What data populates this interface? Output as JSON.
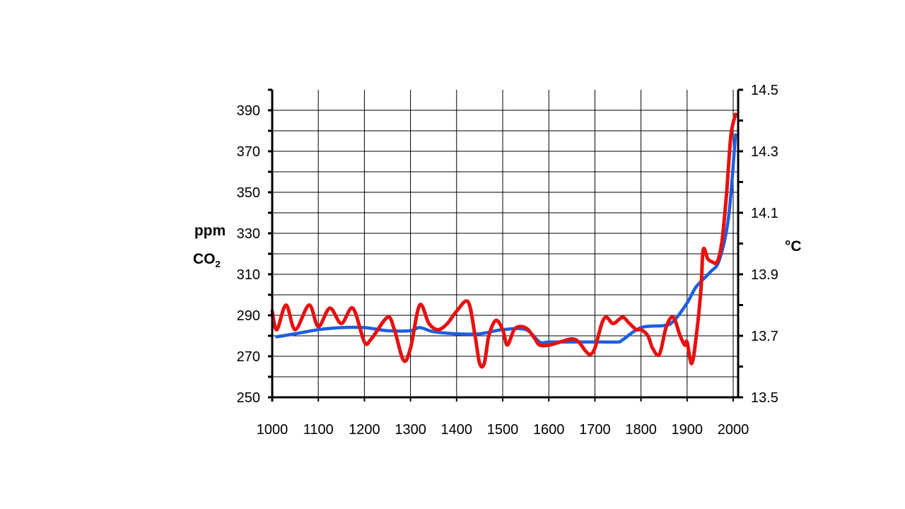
{
  "chart_data": {
    "type": "line",
    "title": "",
    "xlabel": "",
    "ylabel_left": {
      "line1": "ppm",
      "line2_main": "CO",
      "line2_sub": "2"
    },
    "ylabel_right": "°C",
    "xlim": [
      1000,
      2010
    ],
    "ylim_left": [
      250,
      400
    ],
    "ylim_right": [
      13.5,
      14.5
    ],
    "x_ticks": [
      1000,
      1100,
      1200,
      1300,
      1400,
      1500,
      1600,
      1700,
      1800,
      1900,
      2000
    ],
    "x_tick_labels": [
      "1000",
      "1100",
      "1200",
      "1300",
      "1400",
      "1500",
      "1600",
      "1700",
      "1800",
      "1900",
      "2000"
    ],
    "y_left_ticks": [
      250,
      270,
      290,
      310,
      330,
      350,
      370,
      390
    ],
    "y_left_tick_labels": [
      "250",
      "270",
      "290",
      "310",
      "330",
      "350",
      "370",
      "390"
    ],
    "y_right_ticks": [
      13.5,
      13.7,
      13.9,
      14.1,
      14.3,
      14.5
    ],
    "y_right_tick_labels": [
      "13.5",
      "13.7",
      "13.9",
      "14.1",
      "14.3",
      "14.5"
    ],
    "grid": true,
    "series": [
      {
        "axis": "left",
        "color": "#1c5fe0",
        "x": [
          1010,
          1050,
          1100,
          1150,
          1200,
          1250,
          1300,
          1320,
          1350,
          1400,
          1450,
          1500,
          1550,
          1580,
          1600,
          1650,
          1700,
          1750,
          1760,
          1800,
          1850,
          1870,
          1900,
          1920,
          1950,
          1970,
          1990,
          2005
        ],
        "values": [
          279.5,
          281,
          283,
          284,
          284,
          282.5,
          282.5,
          284,
          282,
          281,
          281,
          283,
          283,
          277,
          277,
          277,
          277,
          277,
          278,
          284,
          285,
          287,
          296,
          304,
          311,
          317,
          338,
          378
        ]
      },
      {
        "axis": "right",
        "color": "#e81010",
        "x": [
          1000,
          1010,
          1030,
          1050,
          1080,
          1100,
          1125,
          1150,
          1175,
          1200,
          1215,
          1250,
          1265,
          1285,
          1300,
          1320,
          1340,
          1360,
          1380,
          1400,
          1425,
          1440,
          1450,
          1460,
          1470,
          1485,
          1500,
          1510,
          1525,
          1540,
          1555,
          1570,
          1580,
          1600,
          1625,
          1650,
          1665,
          1680,
          1690,
          1700,
          1715,
          1725,
          1740,
          1760,
          1775,
          1790,
          1800,
          1815,
          1825,
          1840,
          1855,
          1870,
          1885,
          1895,
          1900,
          1910,
          1920,
          1930,
          1935,
          1945,
          1955,
          1965,
          1975,
          1985,
          1995,
          2005
        ],
        "values": [
          13.78,
          13.72,
          13.8,
          13.72,
          13.8,
          13.73,
          13.79,
          13.74,
          13.79,
          13.68,
          13.69,
          13.76,
          13.72,
          13.62,
          13.66,
          13.8,
          13.74,
          13.72,
          13.74,
          13.78,
          13.81,
          13.7,
          13.61,
          13.61,
          13.7,
          13.75,
          13.72,
          13.67,
          13.72,
          13.73,
          13.72,
          13.69,
          13.67,
          13.67,
          13.68,
          13.69,
          13.68,
          13.65,
          13.64,
          13.66,
          13.74,
          13.76,
          13.74,
          13.76,
          13.74,
          13.72,
          13.72,
          13.7,
          13.66,
          13.64,
          13.73,
          13.76,
          13.7,
          13.67,
          13.68,
          13.61,
          13.7,
          13.85,
          13.98,
          13.95,
          13.94,
          13.94,
          14.0,
          14.15,
          14.35,
          14.42
        ]
      }
    ]
  }
}
